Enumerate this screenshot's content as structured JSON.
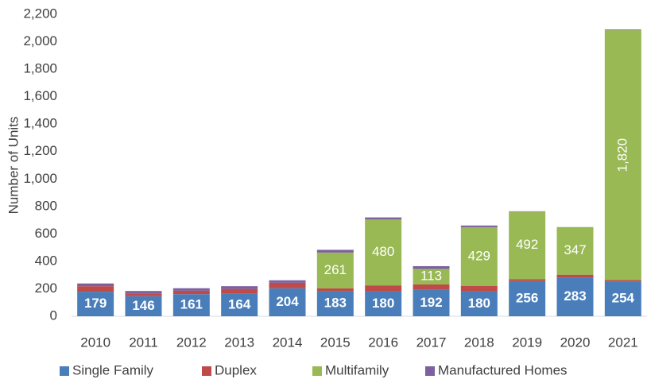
{
  "chart_data": {
    "type": "stacked_bar",
    "y_axis_label": "Number of Units",
    "categories": [
      "2010",
      "2011",
      "2012",
      "2013",
      "2014",
      "2015",
      "2016",
      "2017",
      "2018",
      "2019",
      "2020",
      "2021"
    ],
    "series": [
      {
        "name": "Single Family",
        "color": "#4a7ebb",
        "values": [
          179,
          146,
          161,
          164,
          204,
          183,
          180,
          192,
          180,
          256,
          283,
          254
        ],
        "labels_bold": true
      },
      {
        "name": "Duplex",
        "color": "#be4b48",
        "values": [
          40,
          20,
          25,
          35,
          40,
          20,
          45,
          40,
          40,
          15,
          20,
          10
        ]
      },
      {
        "name": "Multifamily",
        "color": "#98b954",
        "values": [
          null,
          null,
          null,
          null,
          null,
          261,
          480,
          113,
          429,
          492,
          347,
          1820
        ],
        "value_labels": [
          null,
          null,
          null,
          null,
          null,
          "261",
          "480",
          "113",
          "429",
          "492",
          "347",
          "1,820"
        ]
      },
      {
        "name": "Manufactured Homes",
        "color": "#7d60a0",
        "values": [
          20,
          18,
          18,
          20,
          18,
          20,
          15,
          20,
          12,
          2,
          0,
          5
        ]
      }
    ],
    "ylim": [
      0,
      2200
    ],
    "yticks": [
      0,
      {
        "value": 200,
        "label": "200"
      },
      {
        "value": 400,
        "label": "400"
      },
      {
        "value": 600,
        "label": "600"
      },
      {
        "value": 800,
        "label": "800"
      },
      {
        "value": 1000,
        "label": "1,000"
      },
      {
        "value": 1200,
        "label": "1,200"
      },
      {
        "value": 1400,
        "label": "1,400"
      },
      {
        "value": 1600,
        "label": "1,600"
      },
      {
        "value": 1800,
        "label": "1,800"
      },
      {
        "value": 2000,
        "label": "2,000"
      },
      {
        "value": 2200,
        "label": "2,200"
      }
    ],
    "legend": "bottom"
  }
}
